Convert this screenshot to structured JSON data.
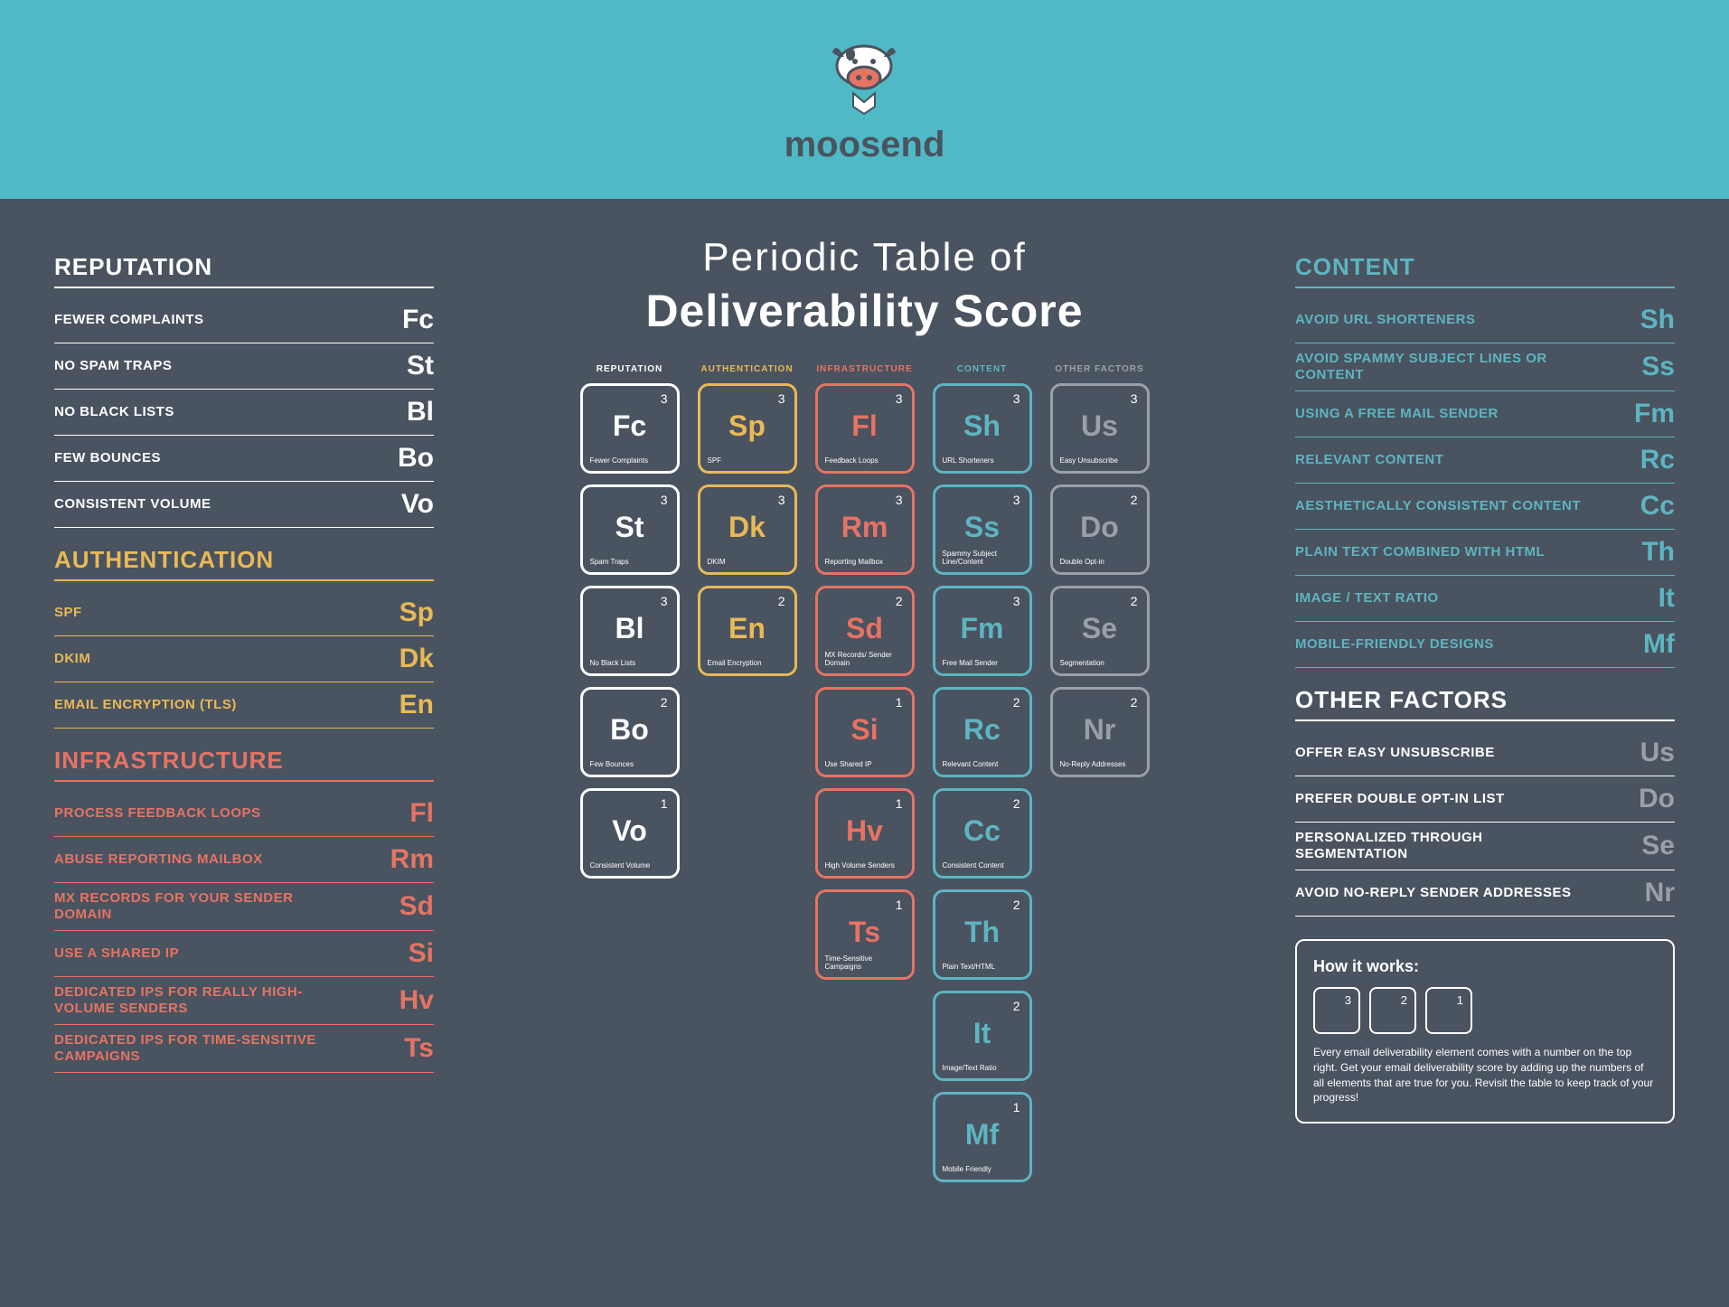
{
  "brand": "moosend",
  "main_title": "Periodic Table of",
  "main_subtitle": "Deliverability Score",
  "colors": {
    "bg": "#4a5360",
    "header": "#4fbac6",
    "white": "#ffffff",
    "yellow": "#e8b956",
    "red": "#e67363",
    "teal": "#5db5c1",
    "gray": "#9aa0a8"
  },
  "left": {
    "reputation": {
      "title": "REPUTATION",
      "color": "white",
      "items": [
        {
          "label": "FEWER COMPLAINTS",
          "sym": "Fc"
        },
        {
          "label": "NO SPAM TRAPS",
          "sym": "St"
        },
        {
          "label": "NO BLACK LISTS",
          "sym": "Bl"
        },
        {
          "label": "FEW BOUNCES",
          "sym": "Bo"
        },
        {
          "label": "CONSISTENT VOLUME",
          "sym": "Vo"
        }
      ]
    },
    "authentication": {
      "title": "AUTHENTICATION",
      "color": "yellow",
      "items": [
        {
          "label": "SPF",
          "sym": "Sp"
        },
        {
          "label": "DKIM",
          "sym": "Dk"
        },
        {
          "label": "EMAIL ENCRYPTION (TLS)",
          "sym": "En"
        }
      ]
    },
    "infrastructure": {
      "title": "INFRASTRUCTURE",
      "color": "red",
      "items": [
        {
          "label": "PROCESS FEEDBACK LOOPS",
          "sym": "Fl"
        },
        {
          "label": "ABUSE REPORTING MAILBOX",
          "sym": "Rm"
        },
        {
          "label": "MX RECORDS FOR YOUR SENDER DOMAIN",
          "sym": "Sd"
        },
        {
          "label": "USE A SHARED IP",
          "sym": "Si"
        },
        {
          "label": "DEDICATED IPS FOR REALLY HIGH-VOLUME SENDERS",
          "sym": "Hv"
        },
        {
          "label": "DEDICATED IPS FOR TIME-SENSITIVE CAMPAIGNS",
          "sym": "Ts"
        }
      ]
    }
  },
  "right": {
    "content": {
      "title": "CONTENT",
      "color": "teal",
      "items": [
        {
          "label": "AVOID URL SHORTENERS",
          "sym": "Sh"
        },
        {
          "label": "AVOID SPAMMY SUBJECT LINES OR CONTENT",
          "sym": "Ss"
        },
        {
          "label": "USING A FREE MAIL SENDER",
          "sym": "Fm"
        },
        {
          "label": "RELEVANT CONTENT",
          "sym": "Rc"
        },
        {
          "label": "AESTHETICALLY CONSISTENT CONTENT",
          "sym": "Cc"
        },
        {
          "label": "PLAIN TEXT COMBINED WITH HTML",
          "sym": "Th"
        },
        {
          "label": "IMAGE / TEXT RATIO",
          "sym": "It"
        },
        {
          "label": "MOBILE-FRIENDLY DESIGNS",
          "sym": "Mf"
        }
      ]
    },
    "other": {
      "title": "OTHER FACTORS",
      "color": "white",
      "items": [
        {
          "label": "OFFER EASY UNSUBSCRIBE",
          "sym": "Us"
        },
        {
          "label": "PREFER DOUBLE OPT-IN LIST",
          "sym": "Do"
        },
        {
          "label": "PERSONALIZED THROUGH SEGMENTATION",
          "sym": "Se"
        },
        {
          "label": "AVOID NO-REPLY SENDER ADDRESSES",
          "sym": "Nr"
        }
      ]
    }
  },
  "columns": [
    {
      "header": "REPUTATION",
      "color": "white",
      "cells": [
        {
          "num": "3",
          "sym": "Fc",
          "desc": "Fewer Complaints"
        },
        {
          "num": "3",
          "sym": "St",
          "desc": "Spam Traps"
        },
        {
          "num": "3",
          "sym": "Bl",
          "desc": "No Black Lists"
        },
        {
          "num": "2",
          "sym": "Bo",
          "desc": "Few Bounces"
        },
        {
          "num": "1",
          "sym": "Vo",
          "desc": "Consistent Volume"
        }
      ]
    },
    {
      "header": "AUTHENTICATION",
      "color": "yellow",
      "cells": [
        {
          "num": "3",
          "sym": "Sp",
          "desc": "SPF"
        },
        {
          "num": "3",
          "sym": "Dk",
          "desc": "DKIM"
        },
        {
          "num": "2",
          "sym": "En",
          "desc": "Email Encryption"
        }
      ]
    },
    {
      "header": "INFRASTRUCTURE",
      "color": "red",
      "cells": [
        {
          "num": "3",
          "sym": "Fl",
          "desc": "Feedback Loops"
        },
        {
          "num": "3",
          "sym": "Rm",
          "desc": "Reporting Mailbox"
        },
        {
          "num": "2",
          "sym": "Sd",
          "desc": "MX Records/ Sender Domain"
        },
        {
          "num": "1",
          "sym": "Si",
          "desc": "Use Shared IP"
        },
        {
          "num": "1",
          "sym": "Hv",
          "desc": "High Volume Senders"
        },
        {
          "num": "1",
          "sym": "Ts",
          "desc": "Time-Sensitive Campaigns"
        }
      ]
    },
    {
      "header": "CONTENT",
      "color": "teal",
      "cells": [
        {
          "num": "3",
          "sym": "Sh",
          "desc": "URL Shorteners"
        },
        {
          "num": "3",
          "sym": "Ss",
          "desc": "Spammy Subject Line/Content"
        },
        {
          "num": "3",
          "sym": "Fm",
          "desc": "Free Mail Sender"
        },
        {
          "num": "2",
          "sym": "Rc",
          "desc": "Relevant Content"
        },
        {
          "num": "2",
          "sym": "Cc",
          "desc": "Consistent Content"
        },
        {
          "num": "2",
          "sym": "Th",
          "desc": "Plain Text/HTML"
        },
        {
          "num": "2",
          "sym": "It",
          "desc": "Image/Text Ratio"
        },
        {
          "num": "1",
          "sym": "Mf",
          "desc": "Mobile Friendly"
        }
      ]
    },
    {
      "header": "OTHER FACTORS",
      "color": "gray",
      "cells": [
        {
          "num": "3",
          "sym": "Us",
          "desc": "Easy Unsubscribe"
        },
        {
          "num": "2",
          "sym": "Do",
          "desc": "Double Opt-in"
        },
        {
          "num": "2",
          "sym": "Se",
          "desc": "Segmentation"
        },
        {
          "num": "2",
          "sym": "Nr",
          "desc": "No-Reply Addresses"
        }
      ]
    }
  ],
  "how": {
    "title": "How it works:",
    "boxes": [
      "3",
      "2",
      "1"
    ],
    "text": "Every email deliverability element comes with a number on the top right. Get your email deliverability score by adding up the numbers of all elements that are true for you. Revisit the table to keep track of your progress!"
  }
}
